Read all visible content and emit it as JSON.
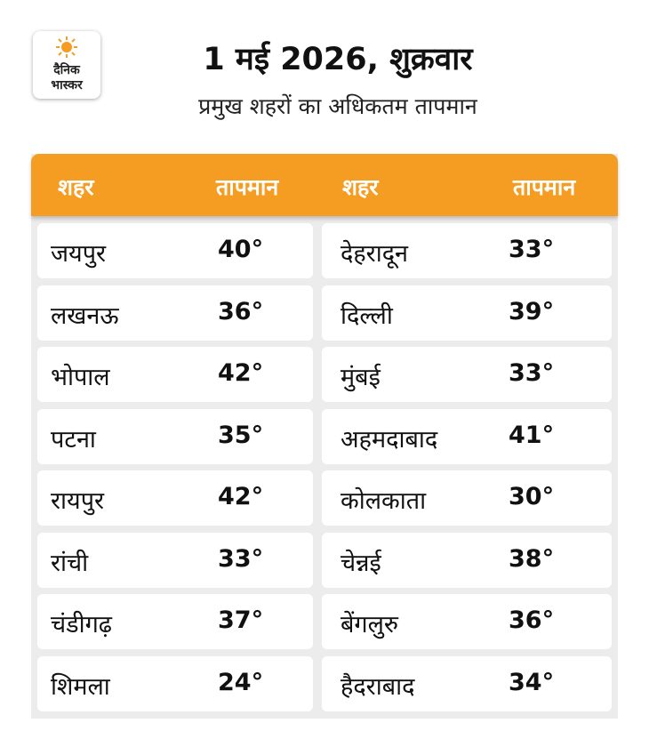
{
  "header": {
    "logo": [
      "दैनिक",
      "भास्कर"
    ],
    "title": "1 मई 2026, शुक्रवार",
    "subtitle": "प्रमुख शहरों का अधिकतम तापमान"
  },
  "table": {
    "columns": [
      "शहर",
      "तापमान",
      "शहर",
      "तापमान"
    ],
    "rows": [
      [
        "जयपुर",
        "40°",
        "देहरादून",
        "33°"
      ],
      [
        "लखनऊ",
        "36°",
        "दिल्ली",
        "39°"
      ],
      [
        "भोपाल",
        "42°",
        "मुंबई",
        "33°"
      ],
      [
        "पटना",
        "35°",
        "अहमदाबाद",
        "41°"
      ],
      [
        "रायपुर",
        "42°",
        "कोलकाता",
        "30°"
      ],
      [
        "रांची",
        "33°",
        "चेन्नई",
        "38°"
      ],
      [
        "चंडीगढ़",
        "37°",
        "बेंगलुरु",
        "36°"
      ],
      [
        "शिमला",
        "24°",
        "हैदराबाद",
        "34°"
      ]
    ]
  }
}
